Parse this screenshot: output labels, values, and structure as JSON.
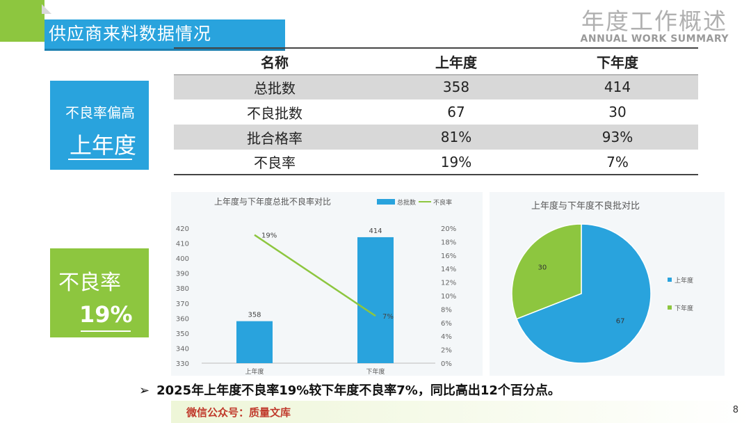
{
  "header": {
    "section_title": "供应商来料数据情况",
    "brand_cn": "年度工作概述",
    "brand_en": "ANNUAL WORK SUMMARY"
  },
  "table": {
    "headers": [
      "名称",
      "上年度",
      "下年度"
    ],
    "rows": [
      [
        "总批数",
        "358",
        "414"
      ],
      [
        "不良批数",
        "67",
        "30"
      ],
      [
        "批合格率",
        "81%",
        "93%"
      ],
      [
        "不良率",
        "19%",
        "7%"
      ]
    ]
  },
  "cards": {
    "blue": {
      "small": "不良率偏高",
      "big": "上年度",
      "color": "#29a3dd"
    },
    "green": {
      "small": "不良率",
      "big": "19%",
      "color": "#8dc63f"
    }
  },
  "chart_data": [
    {
      "type": "bar",
      "title": "上年度与下年度总批不良率对比",
      "categories": [
        "上年度",
        "下年度"
      ],
      "series": [
        {
          "name": "总批数",
          "kind": "bar",
          "axis": "left",
          "values": [
            358,
            414
          ],
          "color": "#29a3dd",
          "labels": [
            "358",
            "414"
          ]
        },
        {
          "name": "不良率",
          "kind": "line",
          "axis": "right",
          "values": [
            19,
            7
          ],
          "color": "#8dc63f",
          "labels": [
            "19%",
            "7%"
          ]
        }
      ],
      "y_left": {
        "min": 330,
        "max": 420,
        "step": 10,
        "ticks": [
          "330",
          "340",
          "350",
          "360",
          "370",
          "380",
          "390",
          "400",
          "410",
          "420"
        ]
      },
      "y_right": {
        "min": 0,
        "max": 20,
        "step": 2,
        "ticks": [
          "0%",
          "2%",
          "4%",
          "6%",
          "8%",
          "10%",
          "12%",
          "14%",
          "16%",
          "18%",
          "20%"
        ]
      },
      "legend": "top-right",
      "grid": false
    },
    {
      "type": "pie",
      "title": "上年度与下年度不良批对比",
      "slices": [
        {
          "label": "上年度",
          "value": 67,
          "color": "#29a3dd"
        },
        {
          "label": "下年度",
          "value": 30,
          "color": "#8dc63f"
        }
      ],
      "legend": "right"
    }
  ],
  "summary": {
    "arrow": "➢",
    "text": "2025年上年度不良率19%较下年度不良率7%，同比高出12个百分点。"
  },
  "footer": {
    "text": "微信公众号：质量文库",
    "page": "8"
  }
}
